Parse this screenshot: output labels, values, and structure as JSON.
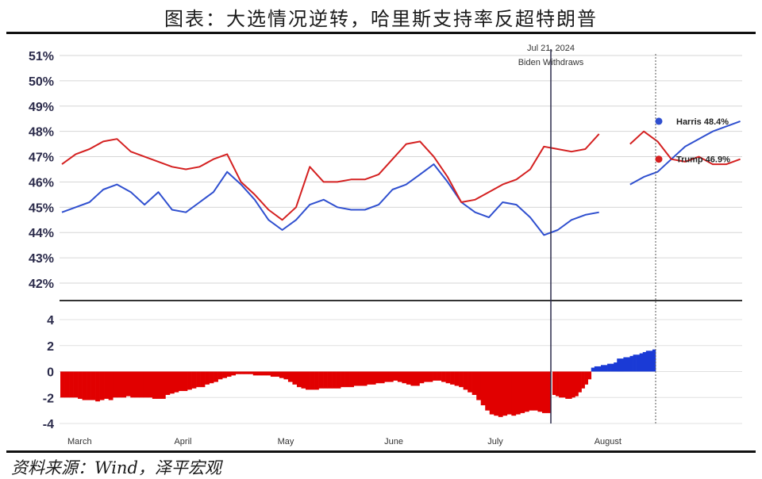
{
  "header": {
    "title": "图表：大选情况逆转，哈里斯支持率反超特朗普"
  },
  "footer": {
    "source": "资料来源：Wind，泽平宏观"
  },
  "colors": {
    "harris": "#2f4fcf",
    "trump": "#d42020",
    "dem_bar": "#1a3ad6",
    "rep_bar": "#e10000"
  },
  "chart_data": [
    {
      "type": "line",
      "ylim": [
        0.415,
        0.51
      ],
      "yticks": [
        "42%",
        "43%",
        "44%",
        "45%",
        "46%",
        "47%",
        "48%",
        "49%",
        "50%",
        "51%"
      ],
      "ytick_values": [
        0.42,
        0.43,
        0.44,
        0.45,
        0.46,
        0.47,
        0.48,
        0.49,
        0.5,
        0.51
      ],
      "x_range": [
        "2024-03-01",
        "2024-08-31"
      ],
      "months": [
        "March",
        "April",
        "May",
        "June",
        "July",
        "August"
      ],
      "month_dates": [
        "2024-03-01",
        "2024-04-01",
        "2024-05-01",
        "2024-06-01",
        "2024-07-01",
        "2024-08-01"
      ],
      "series": [
        {
          "name": "Harris",
          "end_label": "Harris 48.4%",
          "points": [
            [
              "2024-03-01",
              0.448
            ],
            [
              "2024-03-05",
              0.45
            ],
            [
              "2024-03-09",
              0.452
            ],
            [
              "2024-03-13",
              0.457
            ],
            [
              "2024-03-17",
              0.459
            ],
            [
              "2024-03-21",
              0.456
            ],
            [
              "2024-03-25",
              0.451
            ],
            [
              "2024-03-29",
              0.456
            ],
            [
              "2024-04-02",
              0.449
            ],
            [
              "2024-04-06",
              0.448
            ],
            [
              "2024-04-10",
              0.452
            ],
            [
              "2024-04-14",
              0.456
            ],
            [
              "2024-04-18",
              0.464
            ],
            [
              "2024-04-22",
              0.459
            ],
            [
              "2024-04-26",
              0.453
            ],
            [
              "2024-04-30",
              0.445
            ],
            [
              "2024-05-04",
              0.441
            ],
            [
              "2024-05-08",
              0.445
            ],
            [
              "2024-05-12",
              0.451
            ],
            [
              "2024-05-16",
              0.453
            ],
            [
              "2024-05-20",
              0.45
            ],
            [
              "2024-05-24",
              0.449
            ],
            [
              "2024-05-28",
              0.449
            ],
            [
              "2024-06-01",
              0.451
            ],
            [
              "2024-06-05",
              0.457
            ],
            [
              "2024-06-09",
              0.459
            ],
            [
              "2024-06-13",
              0.463
            ],
            [
              "2024-06-17",
              0.467
            ],
            [
              "2024-06-21",
              0.46
            ],
            [
              "2024-06-25",
              0.452
            ],
            [
              "2024-06-29",
              0.448
            ],
            [
              "2024-07-03",
              0.446
            ],
            [
              "2024-07-07",
              0.452
            ],
            [
              "2024-07-11",
              0.451
            ],
            [
              "2024-07-15",
              0.446
            ],
            [
              "2024-07-19",
              0.439
            ],
            [
              "2024-07-23",
              0.441
            ],
            [
              "2024-07-27",
              0.445
            ],
            [
              "2024-07-31",
              0.447
            ],
            [
              "2024-08-04",
              0.448
            ],
            null,
            [
              "2024-08-13",
              0.459
            ],
            [
              "2024-08-17",
              0.462
            ],
            [
              "2024-08-21",
              0.464
            ],
            [
              "2024-08-25",
              0.469
            ],
            [
              "2024-08-29",
              0.474
            ],
            [
              "2024-09-02",
              0.477
            ],
            [
              "2024-09-06",
              0.48
            ],
            [
              "2024-09-10",
              0.482
            ],
            [
              "2024-09-14",
              0.484
            ]
          ]
        },
        {
          "name": "Trump",
          "end_label": "Trump 46.9%",
          "points": [
            [
              "2024-03-01",
              0.467
            ],
            [
              "2024-03-05",
              0.471
            ],
            [
              "2024-03-09",
              0.473
            ],
            [
              "2024-03-13",
              0.476
            ],
            [
              "2024-03-17",
              0.477
            ],
            [
              "2024-03-21",
              0.472
            ],
            [
              "2024-03-25",
              0.47
            ],
            [
              "2024-03-29",
              0.468
            ],
            [
              "2024-04-02",
              0.466
            ],
            [
              "2024-04-06",
              0.465
            ],
            [
              "2024-04-10",
              0.466
            ],
            [
              "2024-04-14",
              0.469
            ],
            [
              "2024-04-18",
              0.471
            ],
            [
              "2024-04-22",
              0.46
            ],
            [
              "2024-04-26",
              0.455
            ],
            [
              "2024-04-30",
              0.449
            ],
            [
              "2024-05-04",
              0.445
            ],
            [
              "2024-05-08",
              0.45
            ],
            [
              "2024-05-12",
              0.466
            ],
            [
              "2024-05-16",
              0.46
            ],
            [
              "2024-05-20",
              0.46
            ],
            [
              "2024-05-24",
              0.461
            ],
            [
              "2024-05-28",
              0.461
            ],
            [
              "2024-06-01",
              0.463
            ],
            [
              "2024-06-05",
              0.469
            ],
            [
              "2024-06-09",
              0.475
            ],
            [
              "2024-06-13",
              0.476
            ],
            [
              "2024-06-17",
              0.47
            ],
            [
              "2024-06-21",
              0.462
            ],
            [
              "2024-06-25",
              0.452
            ],
            [
              "2024-06-29",
              0.453
            ],
            [
              "2024-07-03",
              0.456
            ],
            [
              "2024-07-07",
              0.459
            ],
            [
              "2024-07-11",
              0.461
            ],
            [
              "2024-07-15",
              0.465
            ],
            [
              "2024-07-19",
              0.474
            ],
            [
              "2024-07-23",
              0.473
            ],
            [
              "2024-07-27",
              0.472
            ],
            [
              "2024-07-31",
              0.473
            ],
            [
              "2024-08-04",
              0.479
            ],
            null,
            [
              "2024-08-13",
              0.475
            ],
            [
              "2024-08-17",
              0.48
            ],
            [
              "2024-08-21",
              0.476
            ],
            [
              "2024-08-25",
              0.469
            ],
            [
              "2024-08-29",
              0.468
            ],
            [
              "2024-09-02",
              0.47
            ],
            [
              "2024-09-06",
              0.467
            ],
            [
              "2024-09-10",
              0.467
            ],
            [
              "2024-09-14",
              0.469
            ]
          ]
        }
      ],
      "event": {
        "label_date": "Jul 21, 2024",
        "label_text": "Biden Withdraws"
      }
    },
    {
      "type": "bar",
      "ylim": [
        -4.2,
        5
      ],
      "yticks": [
        "-4",
        "-2",
        "0",
        "2",
        "4"
      ],
      "ytick_values": [
        -4,
        -2,
        0,
        2,
        4
      ],
      "series": [
        {
          "name": "margin",
          "values": [
            -2.0,
            -2.0,
            -2.0,
            -2.0,
            -2.1,
            -2.2,
            -2.2,
            -2.2,
            -2.3,
            -2.2,
            -2.1,
            -2.2,
            -2.0,
            -2.0,
            -2.0,
            -1.9,
            -2.0,
            -2.0,
            -2.0,
            -2.0,
            -2.0,
            -2.1,
            -2.1,
            -2.1,
            -1.8,
            -1.7,
            -1.6,
            -1.5,
            -1.5,
            -1.4,
            -1.3,
            -1.2,
            -1.2,
            -1.0,
            -0.9,
            -0.8,
            -0.6,
            -0.5,
            -0.4,
            -0.3,
            -0.2,
            -0.2,
            -0.2,
            -0.2,
            -0.3,
            -0.3,
            -0.3,
            -0.3,
            -0.4,
            -0.4,
            -0.5,
            -0.6,
            -0.8,
            -1.0,
            -1.2,
            -1.3,
            -1.4,
            -1.4,
            -1.4,
            -1.3,
            -1.3,
            -1.3,
            -1.3,
            -1.3,
            -1.2,
            -1.2,
            -1.2,
            -1.1,
            -1.1,
            -1.1,
            -1.0,
            -1.0,
            -0.9,
            -0.9,
            -0.8,
            -0.8,
            -0.7,
            -0.8,
            -0.9,
            -1.0,
            -1.1,
            -1.1,
            -0.9,
            -0.8,
            -0.8,
            -0.7,
            -0.7,
            -0.8,
            -0.9,
            -1.0,
            -1.1,
            -1.2,
            -1.4,
            -1.6,
            -1.8,
            -2.2,
            -2.6,
            -3.0,
            -3.3,
            -3.4,
            -3.5,
            -3.4,
            -3.3,
            -3.4,
            -3.3,
            -3.2,
            -3.1,
            -3.0,
            -3.0,
            -3.1,
            -3.2,
            -3.2,
            -1.8,
            -1.9,
            -2.0,
            -2.0,
            -2.1,
            -2.1,
            -2.0,
            -1.9,
            -1.6,
            -1.3,
            -1.0,
            -0.6,
            0.3,
            0.4,
            0.4,
            0.5,
            0.5,
            0.6,
            0.6,
            0.7,
            1.0,
            1.0,
            1.1,
            1.1,
            1.2,
            1.3,
            1.3,
            1.4,
            1.5,
            1.6,
            1.6,
            1.7
          ]
        }
      ]
    }
  ]
}
